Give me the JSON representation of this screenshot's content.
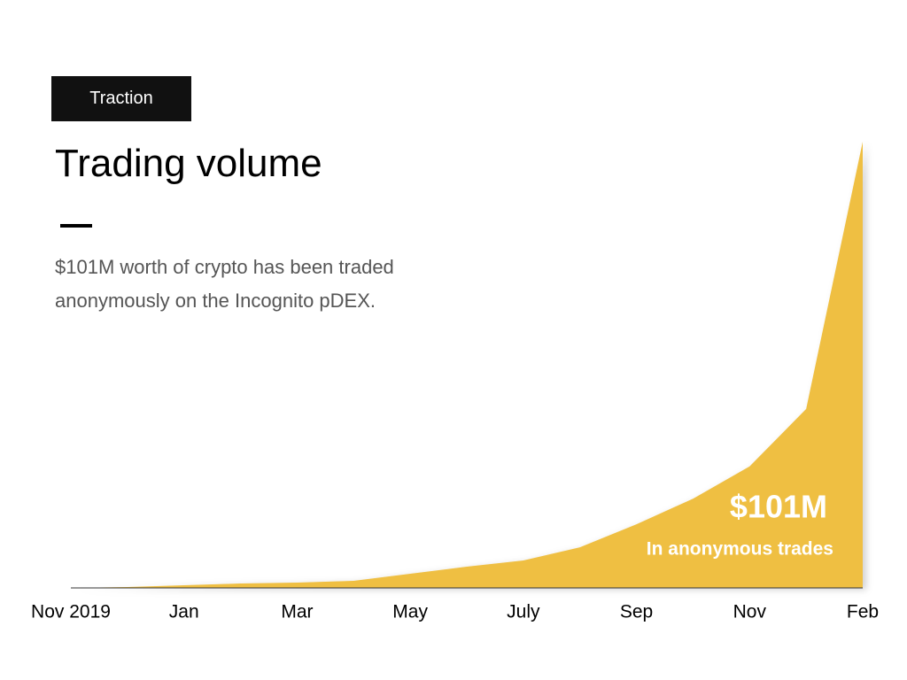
{
  "chart_data": {
    "type": "area",
    "tag": "Traction",
    "title": "Trading volume",
    "subtitle": "$101M worth of crypto has been traded anonymously on the Incognito pDEX.",
    "categories": [
      "Nov 2019",
      null,
      "Jan",
      null,
      "Mar",
      null,
      "May",
      null,
      "July",
      null,
      "Sep",
      null,
      "Nov",
      null,
      "Feb"
    ],
    "values": [
      0,
      0.2,
      0.6,
      1,
      1.2,
      1.6,
      3.2,
      4.8,
      6.2,
      9.2,
      14.4,
      20.2,
      27.5,
      40.5,
      101
    ],
    "color": "#efbf42",
    "ylim": [
      0,
      101
    ],
    "annotation": {
      "label": "$101M",
      "caption": "In anonymous trades"
    }
  }
}
